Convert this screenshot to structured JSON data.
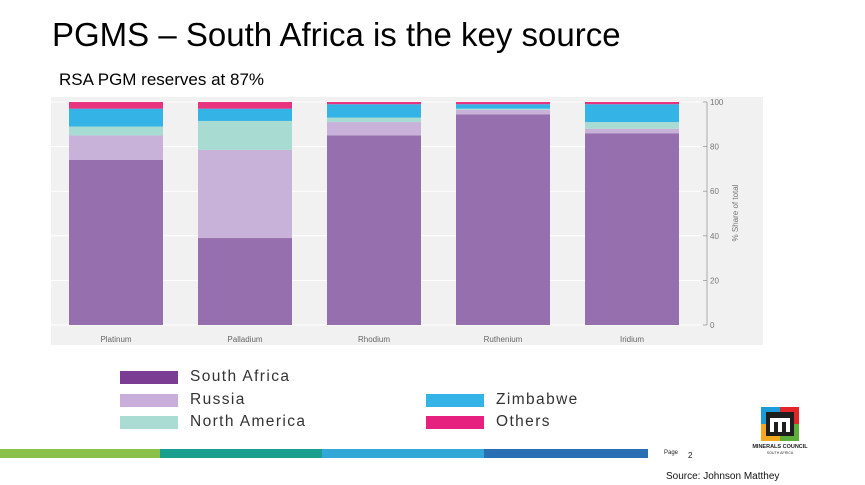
{
  "slide": {
    "title": "PGMS – South Africa is the key source",
    "subtitle": "RSA PGM reserves at 87%",
    "page_label": "Page",
    "page_number": "2",
    "source": "Source: Johnson Matthey"
  },
  "logo": {
    "name": "MINERALS COUNCIL",
    "sub": "SOUTH AFRICA"
  },
  "footer_colors": [
    "#8bc14a",
    "#1a9e8e",
    "#33a8d8",
    "#2a6fb3"
  ],
  "chart_data": {
    "type": "bar",
    "stacked": true,
    "title": "",
    "xlabel": "",
    "ylabel": "% Share of total",
    "ylim": [
      0,
      100
    ],
    "yticks": [
      0,
      20,
      40,
      60,
      80,
      100
    ],
    "grid": true,
    "legend_position": "bottom",
    "categories": [
      "Platinum",
      "Palladium",
      "Rhodium",
      "Ruthenium",
      "Iridium"
    ],
    "series": [
      {
        "name": "South Africa",
        "color": "#9670ae",
        "legend_color": "#7a3d93",
        "values": [
          74,
          39,
          85,
          94.5,
          86
        ]
      },
      {
        "name": "Russia",
        "color": "#c8b2d9",
        "legend_color": "#c9aedb",
        "values": [
          11,
          39.5,
          6,
          2,
          2
        ]
      },
      {
        "name": "North America",
        "color": "#a8dbd2",
        "legend_color": "#aadcd3",
        "values": [
          4,
          13,
          2,
          0.5,
          3
        ]
      },
      {
        "name": "Zimbabwe",
        "color": "#34b4e6",
        "legend_color": "#34b4e6",
        "values": [
          8,
          5.5,
          6,
          2,
          8
        ]
      },
      {
        "name": "Others",
        "color": "#e8337f",
        "legend_color": "#e6207e",
        "values": [
          3,
          3,
          1,
          1,
          1
        ]
      }
    ]
  }
}
